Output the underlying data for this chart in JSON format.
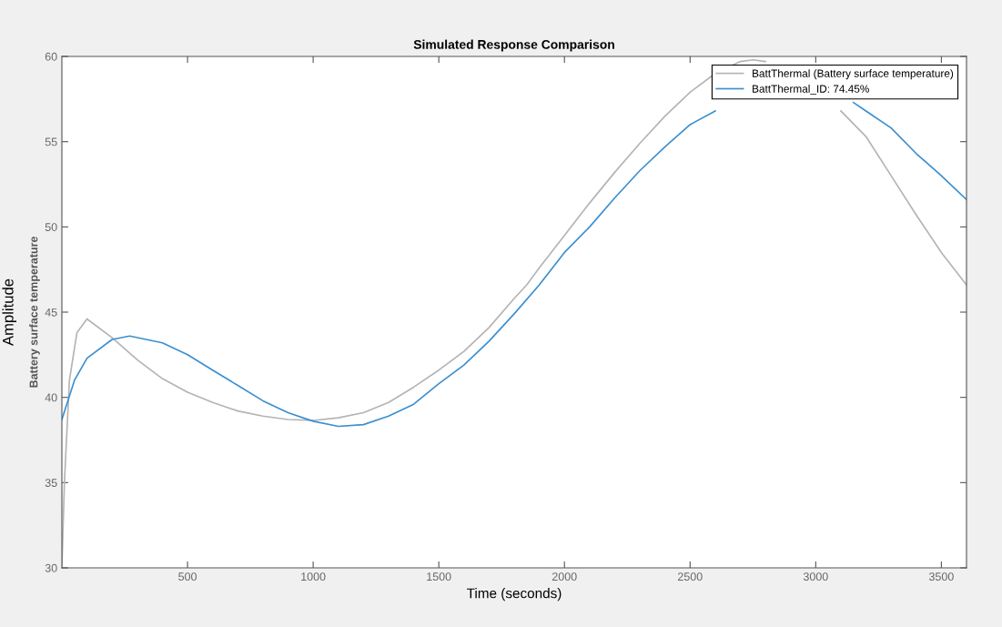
{
  "chart_data": {
    "type": "line",
    "title": "Simulated Response Comparison",
    "xlabel": "Time (seconds)",
    "ylabel": "Amplitude",
    "annotations": [
      "Battery surface temperature"
    ],
    "xlim": [
      0,
      3600
    ],
    "xticks": [
      500,
      1000,
      1500,
      2000,
      2500,
      3000,
      3500
    ],
    "ylim": [
      30,
      60
    ],
    "yticks": [
      30,
      35,
      40,
      45,
      50,
      55,
      60
    ],
    "grid": false,
    "legend": "top right",
    "marker": "none",
    "line_style": "solid",
    "series": [
      {
        "name": "BattThermal (Battery surface temperature)",
        "color": "#b4b4b4",
        "x": [
          0,
          10,
          30,
          60,
          100,
          200,
          300,
          400,
          500,
          600,
          700,
          800,
          900,
          1000,
          1100,
          1200,
          1300,
          1400,
          1500,
          1600,
          1700,
          1800,
          1850,
          1900,
          2000,
          2100,
          2200,
          2300,
          2400,
          2500,
          2600,
          2700,
          2750,
          2800,
          2900,
          3000,
          3100,
          3200,
          3300,
          3400,
          3500,
          3600
        ],
        "values": [
          30,
          35,
          41,
          43.8,
          44.6,
          43.5,
          42.2,
          41.1,
          40.3,
          39.7,
          39.2,
          38.9,
          38.7,
          38.65,
          38.8,
          39.1,
          39.7,
          40.6,
          41.6,
          42.7,
          44.1,
          45.8,
          46.6,
          47.6,
          49.5,
          51.4,
          53.2,
          54.9,
          56.5,
          57.9,
          59.0,
          59.7,
          59.8,
          59.7,
          null,
          null,
          56.8,
          55.3,
          53.0,
          50.7,
          48.5,
          46.6
        ]
      },
      {
        "name": "BattThermal_ID: 74.45%",
        "color": "#3b8fd0",
        "x": [
          0,
          50,
          100,
          200,
          270,
          400,
          500,
          600,
          700,
          800,
          900,
          1000,
          1100,
          1200,
          1300,
          1400,
          1500,
          1600,
          1700,
          1800,
          1900,
          2000,
          2100,
          2200,
          2300,
          2400,
          2500,
          2600,
          2700,
          2800,
          2900,
          3000,
          3100,
          3150,
          3200,
          3300,
          3400,
          3500,
          3600
        ],
        "values": [
          38.7,
          41.0,
          42.3,
          43.4,
          43.6,
          43.2,
          42.5,
          41.6,
          40.7,
          39.8,
          39.1,
          38.6,
          38.3,
          38.4,
          38.9,
          39.6,
          40.8,
          41.9,
          43.3,
          44.9,
          46.6,
          48.5,
          50.0,
          51.7,
          53.3,
          54.7,
          56.0,
          56.8,
          null,
          null,
          null,
          null,
          null,
          57.3,
          56.8,
          55.8,
          54.3,
          53.0,
          51.6
        ]
      }
    ]
  }
}
